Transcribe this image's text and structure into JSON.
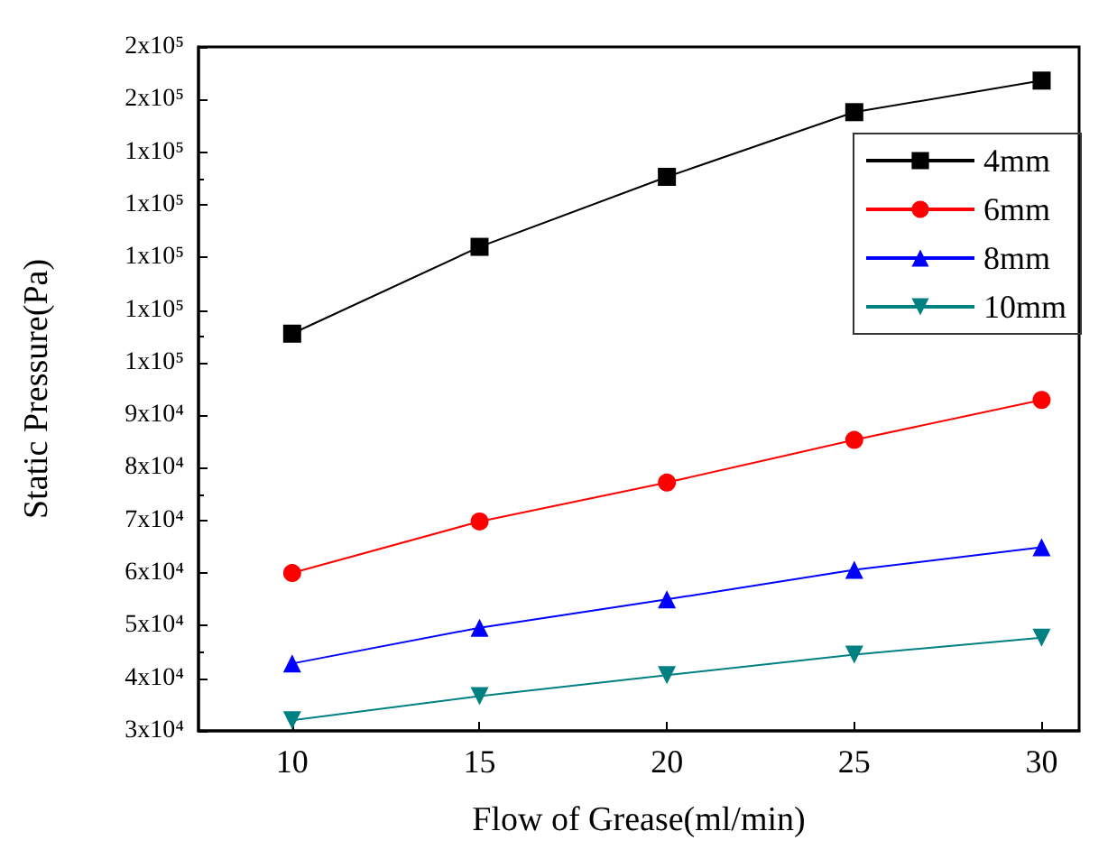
{
  "chart_data": {
    "type": "line",
    "xlabel": "Flow of Grease(ml/min)",
    "ylabel": "Static Pressure(Pa)",
    "x": [
      10,
      15,
      20,
      25,
      30
    ],
    "series": [
      {
        "name": "4mm",
        "color": "#000000",
        "marker": "square",
        "values": [
          105500,
          122000,
          135300,
          147600,
          153600
        ]
      },
      {
        "name": "6mm",
        "color": "#ff0000",
        "marker": "circle",
        "values": [
          60000,
          69800,
          77200,
          85300,
          92900
        ]
      },
      {
        "name": "8mm",
        "color": "#0000ff",
        "marker": "triangle",
        "values": [
          42800,
          49600,
          55000,
          60600,
          64900
        ]
      },
      {
        "name": "10mm",
        "color": "#008080",
        "marker": "triangle-down",
        "values": [
          32000,
          36600,
          40600,
          44500,
          47700
        ]
      }
    ],
    "xlim": [
      7.5,
      31
    ],
    "xticks": [
      10,
      15,
      20,
      25,
      30
    ],
    "ylim": [
      30000,
      160000
    ],
    "yticks": [
      {
        "value": 30000,
        "label": "3x10⁴"
      },
      {
        "value": 40000,
        "label": "4x10⁴"
      },
      {
        "value": 50000,
        "label": "5x10⁴"
      },
      {
        "value": 60000,
        "label": "6x10⁴"
      },
      {
        "value": 70000,
        "label": "7x10⁴"
      },
      {
        "value": 80000,
        "label": "8x10⁴"
      },
      {
        "value": 90000,
        "label": "9x10⁴"
      },
      {
        "value": 100000,
        "label": "1x10⁵"
      },
      {
        "value": 110000,
        "label": "1x10⁵"
      },
      {
        "value": 120000,
        "label": "1x10⁵"
      },
      {
        "value": 130000,
        "label": "1x10⁵"
      },
      {
        "value": 140000,
        "label": "1x10⁵"
      },
      {
        "value": 150000,
        "label": "2x10⁵"
      },
      {
        "value": 160000,
        "label": "2x10⁵"
      }
    ],
    "grid": false,
    "legend": "top right",
    "line_style": "solid"
  }
}
